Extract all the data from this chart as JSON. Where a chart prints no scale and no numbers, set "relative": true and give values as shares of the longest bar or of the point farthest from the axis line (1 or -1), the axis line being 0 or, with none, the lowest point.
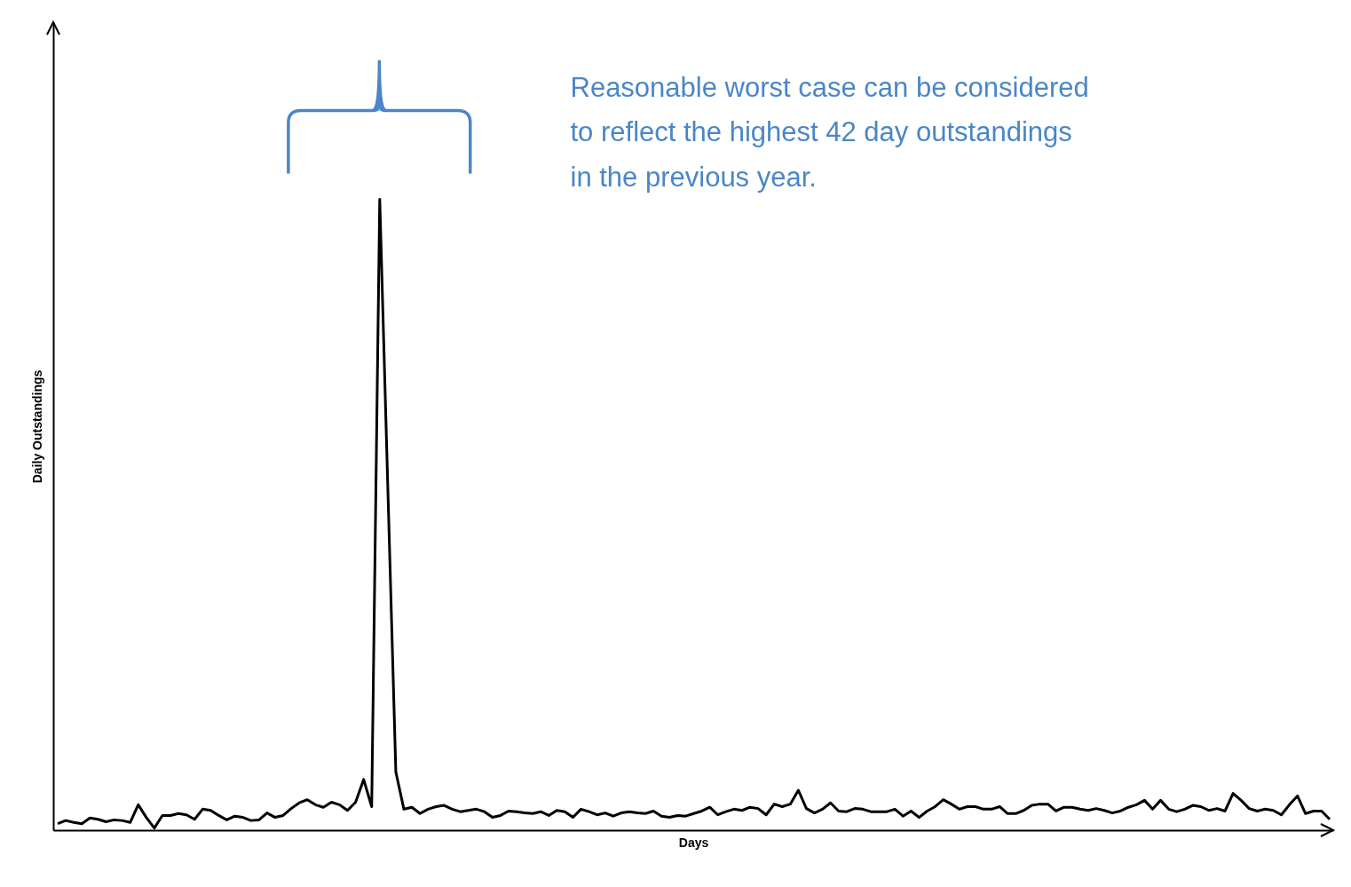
{
  "chart_data": {
    "type": "line",
    "relative": true,
    "xlabel": "Days",
    "ylabel": "Daily Outstandings",
    "annotations": [
      "Reasonable worst case can be considered\nto reflect the highest 42 day outstandings\nin the previous year."
    ],
    "categories": [
      null,
      null,
      null,
      null,
      null,
      null,
      null,
      null,
      null,
      null,
      null,
      null,
      null,
      null,
      null,
      null,
      null,
      null,
      null,
      null,
      null,
      null,
      null,
      null,
      null,
      null,
      null,
      null,
      null,
      null,
      null,
      null,
      null,
      null,
      null,
      null,
      null,
      null,
      null,
      null,
      null,
      null,
      null,
      null,
      null,
      null,
      null,
      null,
      null,
      null,
      null,
      null,
      null,
      null,
      null,
      null,
      null,
      null,
      null,
      null,
      null,
      null,
      null,
      null,
      null,
      null,
      null,
      null,
      null,
      null,
      null,
      null,
      null,
      null,
      null,
      null,
      null,
      null,
      null,
      null,
      null,
      null,
      null,
      null,
      null,
      null,
      null,
      null,
      null,
      null,
      null,
      null,
      null,
      null,
      null,
      null,
      null,
      null,
      null,
      null,
      null,
      null,
      null,
      null,
      null,
      null,
      null,
      null,
      null,
      null,
      null,
      null,
      null,
      null,
      null,
      null,
      null,
      null,
      null,
      null,
      null,
      null,
      null,
      null,
      null,
      null,
      null,
      null,
      null,
      null,
      null,
      null,
      null,
      null,
      null,
      null,
      null,
      null,
      null,
      null,
      null,
      null,
      null,
      null,
      null,
      null,
      null,
      null,
      null,
      null,
      null,
      null,
      null,
      null,
      null,
      null,
      null,
      null,
      null
    ],
    "series": [
      {
        "color": "#000000",
        "values": [
          0.011,
          0.016,
          0.013,
          0.011,
          0.02,
          0.018,
          0.014,
          0.017,
          0.016,
          0.013,
          0.041,
          0.021,
          0.004,
          0.024,
          0.024,
          0.027,
          0.025,
          0.018,
          0.034,
          0.032,
          0.024,
          0.017,
          0.023,
          0.021,
          0.016,
          0.017,
          0.028,
          0.021,
          0.024,
          0.035,
          0.044,
          0.049,
          0.041,
          0.037,
          0.045,
          0.041,
          0.032,
          0.045,
          0.081,
          0.038,
          1,
          0.545,
          0.093,
          0.034,
          0.037,
          0.027,
          0.034,
          0.038,
          0.04,
          0.034,
          0.03,
          0.032,
          0.034,
          0.03,
          0.021,
          0.024,
          0.031,
          0.03,
          0.028,
          0.027,
          0.03,
          0.024,
          0.032,
          0.03,
          0.021,
          0.034,
          0.03,
          0.025,
          0.028,
          0.023,
          0.028,
          0.03,
          0.028,
          0.027,
          0.031,
          0.023,
          0.021,
          0.024,
          0.023,
          0.027,
          0.031,
          0.037,
          0.025,
          0.03,
          0.034,
          0.032,
          0.037,
          0.035,
          0.025,
          0.042,
          0.038,
          0.042,
          0.064,
          0.035,
          0.028,
          0.034,
          0.044,
          0.031,
          0.03,
          0.035,
          0.034,
          0.03,
          0.03,
          0.03,
          0.034,
          0.023,
          0.031,
          0.021,
          0.031,
          0.038,
          0.049,
          0.042,
          0.034,
          0.038,
          0.038,
          0.034,
          0.034,
          0.038,
          0.027,
          0.027,
          0.032,
          0.04,
          0.042,
          0.042,
          0.031,
          0.037,
          0.037,
          0.034,
          0.032,
          0.035,
          0.032,
          0.028,
          0.031,
          0.037,
          0.041,
          0.048,
          0.034,
          0.048,
          0.034,
          0.03,
          0.034,
          0.04,
          0.038,
          0.032,
          0.035,
          0.031,
          0.059,
          0.048,
          0.035,
          0.031,
          0.034,
          0.032,
          0.025,
          0.041,
          0.055,
          0.027,
          0.031,
          0.031,
          0.018
        ]
      }
    ]
  }
}
